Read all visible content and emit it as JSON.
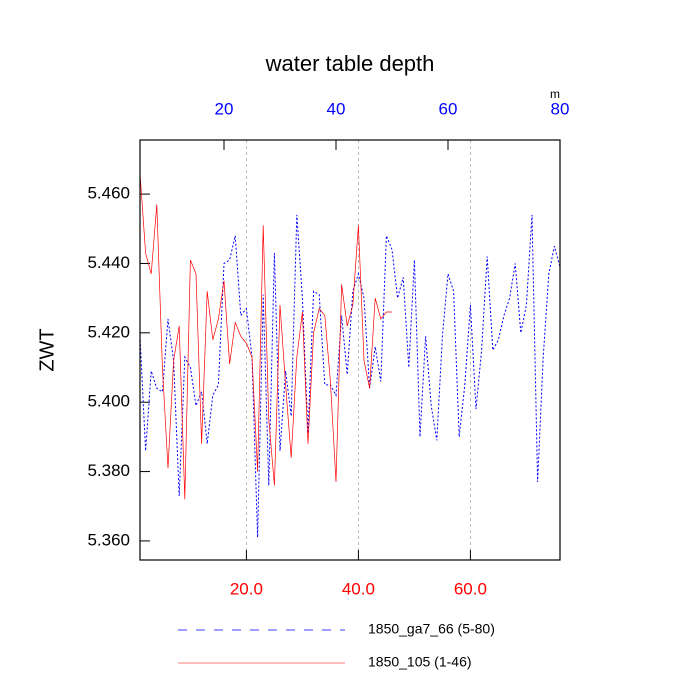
{
  "chart_data": {
    "type": "line",
    "title": "water table depth",
    "ylabel": "ZWT",
    "x2unit": "m",
    "xlim": [
      1,
      76
    ],
    "xticks": [
      {
        "value": 20,
        "label": "20.0"
      },
      {
        "value": 40,
        "label": "40.0"
      },
      {
        "value": 60,
        "label": "60.0"
      }
    ],
    "x2lim": [
      5,
      80
    ],
    "x2ticks": [
      20,
      40,
      60,
      80
    ],
    "ylim": [
      5.3545,
      5.4756
    ],
    "yticks": [
      {
        "value": 5.36,
        "label": "5.360"
      },
      {
        "value": 5.38,
        "label": "5.380"
      },
      {
        "value": 5.4,
        "label": "5.400"
      },
      {
        "value": 5.42,
        "label": "5.420"
      },
      {
        "value": 5.44,
        "label": "5.440"
      },
      {
        "value": 5.46,
        "label": "5.460"
      }
    ],
    "grid": true,
    "series": [
      {
        "name": "1850_ga7_66 (5-80)",
        "color": "#0000ff",
        "dashed": true,
        "axis": "x2",
        "x": [
          5,
          6,
          7,
          8,
          9,
          10,
          11,
          12,
          13,
          14,
          15,
          16,
          17,
          18,
          19,
          20,
          21,
          22,
          23,
          24,
          25,
          26,
          27,
          28,
          29,
          30,
          31,
          32,
          33,
          34,
          35,
          36,
          37,
          38,
          39,
          40,
          41,
          42,
          43,
          44,
          45,
          46,
          47,
          48,
          49,
          50,
          51,
          52,
          53,
          54,
          55,
          56,
          57,
          58,
          59,
          60,
          61,
          62,
          63,
          64,
          65,
          66,
          67,
          68,
          69,
          70,
          71,
          72,
          73,
          74,
          75,
          76,
          77,
          78,
          79,
          80
        ],
        "values": [
          5.419,
          5.386,
          5.409,
          5.404,
          5.403,
          5.424,
          5.412,
          5.373,
          5.413,
          5.41,
          5.399,
          5.403,
          5.388,
          5.402,
          5.405,
          5.44,
          5.441,
          5.448,
          5.425,
          5.427,
          5.413,
          5.361,
          5.431,
          5.376,
          5.443,
          5.386,
          5.409,
          5.396,
          5.454,
          5.43,
          5.391,
          5.432,
          5.431,
          5.405,
          5.405,
          5.402,
          5.425,
          5.408,
          5.432,
          5.437,
          5.43,
          5.404,
          5.416,
          5.406,
          5.448,
          5.444,
          5.43,
          5.436,
          5.41,
          5.441,
          5.39,
          5.419,
          5.399,
          5.389,
          5.419,
          5.437,
          5.432,
          5.39,
          5.405,
          5.428,
          5.398,
          5.415,
          5.442,
          5.415,
          5.418,
          5.425,
          5.43,
          5.44,
          5.42,
          5.428,
          5.454,
          5.377,
          5.413,
          5.437,
          5.445,
          5.439
        ]
      },
      {
        "name": "1850_105 (1-46)",
        "color": "#ff0000",
        "dashed": false,
        "axis": "x",
        "x": [
          1,
          2,
          3,
          4,
          5,
          6,
          7,
          8,
          9,
          10,
          11,
          12,
          13,
          14,
          15,
          16,
          17,
          18,
          19,
          20,
          21,
          22,
          23,
          24,
          25,
          26,
          27,
          28,
          29,
          30,
          31,
          32,
          33,
          34,
          35,
          36,
          37,
          38,
          39,
          40,
          41,
          42,
          43,
          44,
          45,
          46
        ],
        "values": [
          5.466,
          5.443,
          5.437,
          5.457,
          5.41,
          5.381,
          5.412,
          5.422,
          5.372,
          5.441,
          5.437,
          5.388,
          5.432,
          5.418,
          5.424,
          5.435,
          5.411,
          5.423,
          5.419,
          5.417,
          5.413,
          5.38,
          5.451,
          5.395,
          5.376,
          5.428,
          5.405,
          5.384,
          5.413,
          5.426,
          5.388,
          5.42,
          5.427,
          5.425,
          5.406,
          5.377,
          5.434,
          5.422,
          5.428,
          5.451,
          5.412,
          5.404,
          5.43,
          5.424,
          5.426,
          5.426
        ]
      }
    ]
  }
}
